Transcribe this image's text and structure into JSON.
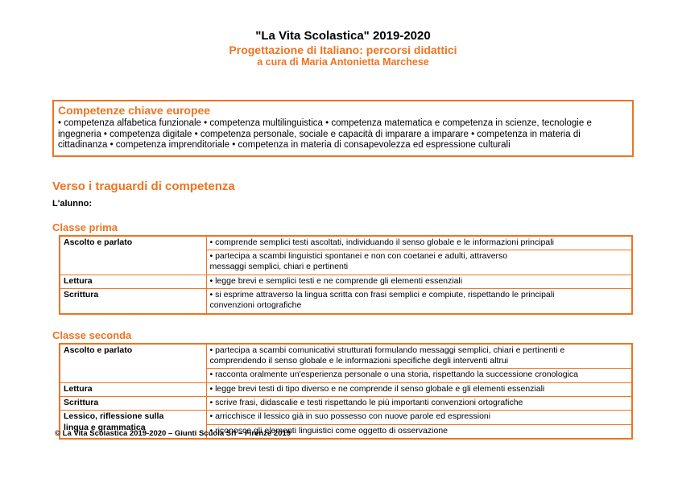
{
  "colors": {
    "accent": "#ee7420"
  },
  "header": {
    "title": "\"La Vita Scolastica\" 2019-2020",
    "subtitle": "Progettazione di Italiano: percorsi didattici",
    "byline": "a cura di Maria Antonietta Marchese"
  },
  "competenze_box": {
    "heading": "Competenze chiave europee",
    "body": "• competenza alfabetica funzionale • competenza multilinguistica • competenza matematica e competenza in scienze, tecnologie e ingegneria • competenza digitale • competenza personale, sociale e capacità di imparare a imparare • competenza in materia di cittadinanza • competenza imprenditoriale • competenza in materia di consapevolezza ed espressione culturali"
  },
  "section": {
    "heading": "Verso i traguardi di competenza",
    "intro": "L'alunno:"
  },
  "classe_prima": {
    "heading": "Classe prima",
    "rows": [
      {
        "label": "Ascolto e parlato",
        "bullets": [
          "• comprende semplici testi ascoltati, individuando il senso globale e le informazioni principali",
          "• partecipa a scambi linguistici spontanei e non con coetanei e adulti, attraverso\nmessaggi semplici, chiari e pertinenti"
        ]
      },
      {
        "label": "Lettura",
        "bullets": [
          "• legge brevi e semplici testi e ne comprende gli elementi essenziali"
        ]
      },
      {
        "label": "Scrittura",
        "bullets": [
          "• si esprime attraverso la lingua scritta con frasi semplici e compiute, rispettando le principali\nconvenzioni ortografiche"
        ]
      }
    ]
  },
  "classe_seconda": {
    "heading": "Classe seconda",
    "rows": [
      {
        "label": "Ascolto e parlato",
        "bullets": [
          "• partecipa a scambi comunicativi strutturati formulando messaggi semplici, chiari e pertinenti e\ncomprendendo il senso globale e le informazioni specifiche degli interventi altrui",
          "• racconta oralmente un'esperienza personale o una storia, rispettando la successione cronologica"
        ]
      },
      {
        "label": "Lettura",
        "bullets": [
          "• legge brevi testi di tipo diverso e ne comprende il senso globale e gli elementi essenziali"
        ]
      },
      {
        "label": "Scrittura",
        "bullets": [
          "• scrive frasi, didascalie e testi rispettando le più importanti convenzioni ortografiche"
        ]
      },
      {
        "label": "Lessico, riflessione sulla\nlingua e grammatica",
        "bullets": [
          "• arricchisce il lessico già in suo possesso con nuove parole ed espressioni",
          "• riconosce gli elementi linguistici come oggetto di osservazione"
        ]
      }
    ]
  },
  "footer": {
    "text": "© La Vita Scolastica 2019-2020 – Giunti Scuola Srl – Firenze 2019"
  }
}
